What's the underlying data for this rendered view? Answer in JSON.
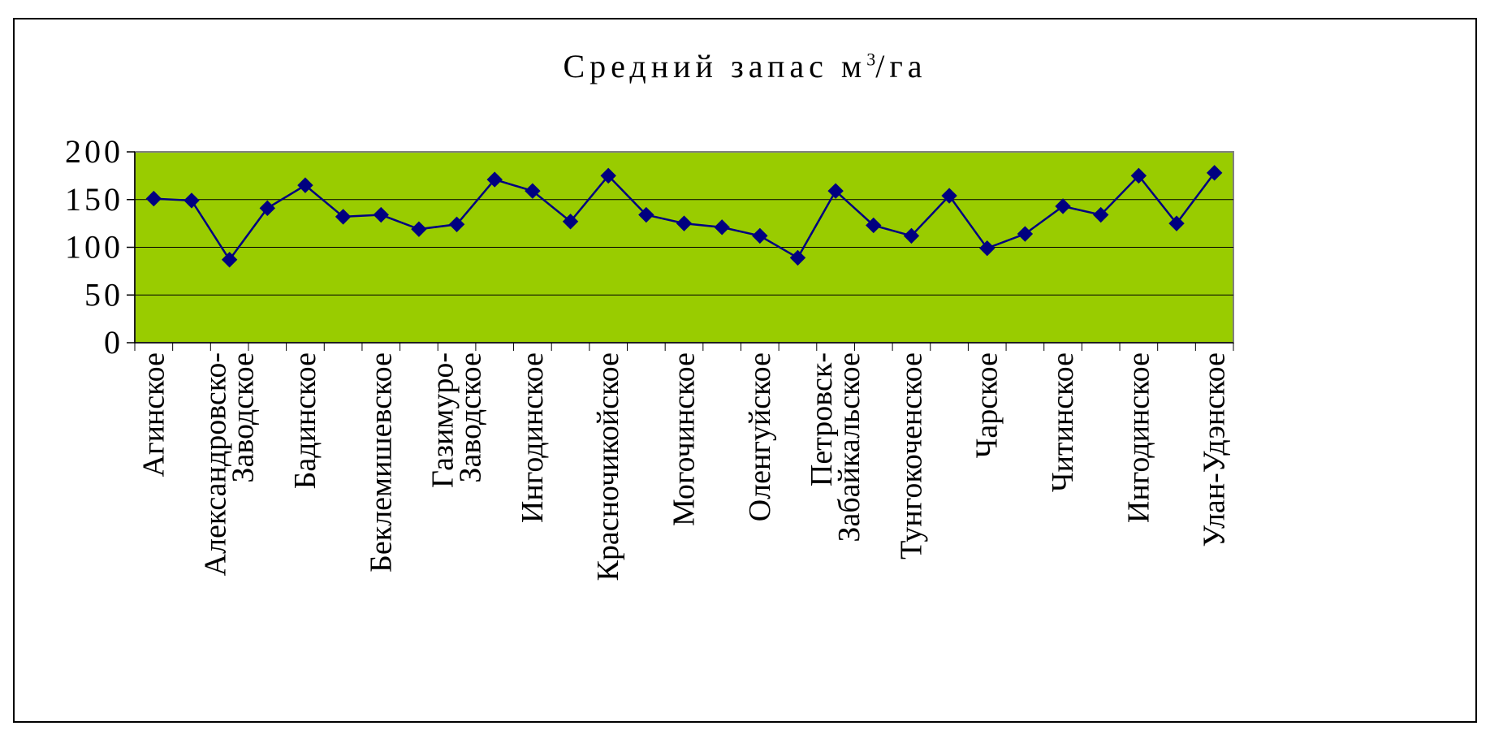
{
  "chart_data": {
    "type": "line",
    "title_main": "Средний запас м",
    "title_sup": "3",
    "title_rest": "/га",
    "xlabel": "",
    "ylabel": "",
    "ylim": [
      0,
      200
    ],
    "yticks": [
      "200",
      "150",
      "100",
      "50",
      "0"
    ],
    "grid": true,
    "plot_background": "#99CC00",
    "line_color": "#000080",
    "marker": "diamond",
    "category_labels": [
      [
        "Агинское"
      ],
      [
        "Александровско-",
        "Заводское"
      ],
      [
        "Бадинское"
      ],
      [
        "Беклемишевское"
      ],
      [
        "Газимуро-",
        "Заводское"
      ],
      [
        "Ингодинское"
      ],
      [
        "Красночикойское"
      ],
      [
        "Могочинское"
      ],
      [
        "Оленгуйское"
      ],
      [
        "Петровск-",
        "Забайкальское"
      ],
      [
        "Тунгокоченское"
      ],
      [
        "Чарское"
      ],
      [
        "Читинское"
      ],
      [
        "Ингодинское"
      ],
      [
        "Улан-Удэнское"
      ]
    ],
    "values": [
      151,
      149,
      87,
      141,
      165,
      132,
      134,
      119,
      124,
      171,
      159,
      127,
      175,
      134,
      125,
      121,
      112,
      89,
      159,
      123,
      112,
      154,
      99,
      114,
      143,
      134,
      175,
      125,
      178
    ]
  }
}
